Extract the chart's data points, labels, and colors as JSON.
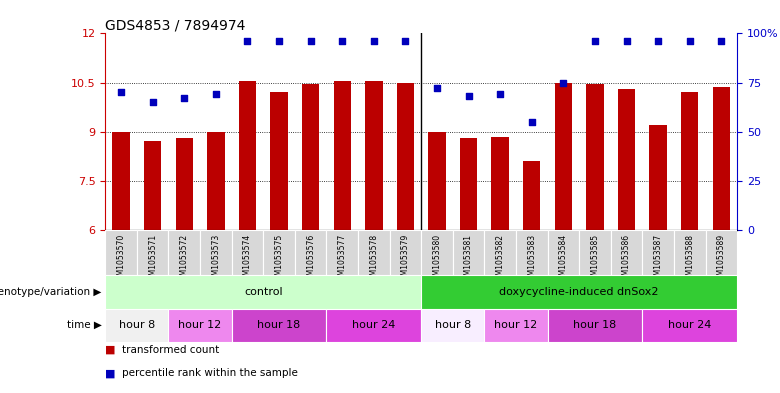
{
  "title": "GDS4853 / 7894974",
  "samples": [
    "GSM1053570",
    "GSM1053571",
    "GSM1053572",
    "GSM1053573",
    "GSM1053574",
    "GSM1053575",
    "GSM1053576",
    "GSM1053577",
    "GSM1053578",
    "GSM1053579",
    "GSM1053580",
    "GSM1053581",
    "GSM1053582",
    "GSM1053583",
    "GSM1053584",
    "GSM1053585",
    "GSM1053586",
    "GSM1053587",
    "GSM1053588",
    "GSM1053589"
  ],
  "bar_values": [
    9.0,
    8.7,
    8.8,
    9.0,
    10.55,
    10.2,
    10.45,
    10.55,
    10.55,
    10.5,
    9.0,
    8.8,
    8.85,
    8.1,
    10.5,
    10.45,
    10.3,
    9.2,
    10.2,
    10.35
  ],
  "percentile_values": [
    70,
    65,
    67,
    69,
    96,
    96,
    96,
    96,
    96,
    96,
    72,
    68,
    69,
    55,
    75,
    96,
    96,
    96,
    96,
    96
  ],
  "bar_color": "#bb0000",
  "dot_color": "#0000bb",
  "ylim_left": [
    6,
    12
  ],
  "ylim_right": [
    0,
    100
  ],
  "yticks_left": [
    6,
    7.5,
    9,
    10.5,
    12
  ],
  "yticks_right": [
    0,
    25,
    50,
    75,
    100
  ],
  "grid_lines": [
    7.5,
    9.0,
    10.5
  ],
  "genotype_groups": [
    {
      "label": "control",
      "start": 0,
      "end": 10,
      "color": "#ccffcc"
    },
    {
      "label": "doxycycline-induced dnSox2",
      "start": 10,
      "end": 20,
      "color": "#33cc33"
    }
  ],
  "time_groups": [
    {
      "label": "hour 8",
      "start": 0,
      "end": 2,
      "color": "#f0f0f0"
    },
    {
      "label": "hour 12",
      "start": 2,
      "end": 4,
      "color": "#ee88ee"
    },
    {
      "label": "hour 18",
      "start": 4,
      "end": 7,
      "color": "#cc44cc"
    },
    {
      "label": "hour 24",
      "start": 7,
      "end": 10,
      "color": "#dd44dd"
    },
    {
      "label": "hour 8",
      "start": 10,
      "end": 12,
      "color": "#f8eeff"
    },
    {
      "label": "hour 12",
      "start": 12,
      "end": 14,
      "color": "#ee88ee"
    },
    {
      "label": "hour 18",
      "start": 14,
      "end": 17,
      "color": "#cc44cc"
    },
    {
      "label": "hour 24",
      "start": 17,
      "end": 20,
      "color": "#dd44dd"
    }
  ],
  "legend_items": [
    {
      "label": "transformed count",
      "color": "#bb0000"
    },
    {
      "label": "percentile rank within the sample",
      "color": "#0000bb"
    }
  ],
  "background_color": "#ffffff",
  "bar_width": 0.55,
  "sample_box_color": "#d8d8d8"
}
